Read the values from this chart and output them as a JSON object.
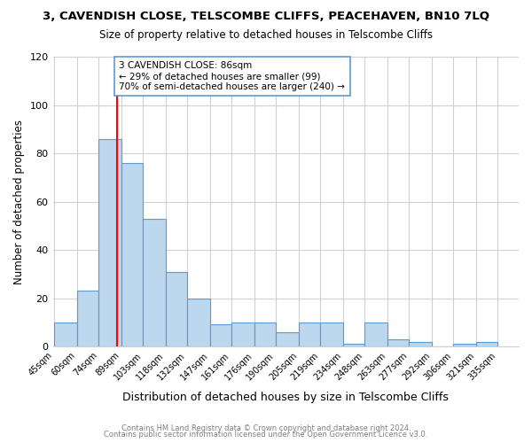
{
  "title": "3, CAVENDISH CLOSE, TELSCOMBE CLIFFS, PEACEHAVEN, BN10 7LQ",
  "subtitle": "Size of property relative to detached houses in Telscombe Cliffs",
  "xlabel": "Distribution of detached houses by size in Telscombe Cliffs",
  "ylabel": "Number of detached properties",
  "bin_labels": [
    "45sqm",
    "60sqm",
    "74sqm",
    "89sqm",
    "103sqm",
    "118sqm",
    "132sqm",
    "147sqm",
    "161sqm",
    "176sqm",
    "190sqm",
    "205sqm",
    "219sqm",
    "234sqm",
    "248sqm",
    "263sqm",
    "277sqm",
    "292sqm",
    "306sqm",
    "321sqm",
    "335sqm"
  ],
  "bin_edges": [
    45,
    60,
    74,
    89,
    103,
    118,
    132,
    147,
    161,
    176,
    190,
    205,
    219,
    234,
    248,
    263,
    277,
    292,
    306,
    321,
    335
  ],
  "bar_heights": [
    10,
    23,
    86,
    76,
    53,
    31,
    20,
    9,
    10,
    10,
    6,
    10,
    10,
    1,
    10,
    3,
    2,
    0,
    1,
    2
  ],
  "bar_color": "#bdd7ee",
  "bar_edge_color": "#5b9bd5",
  "ref_line_x": 86,
  "ref_line_color": "red",
  "annotation_title": "3 CAVENDISH CLOSE: 86sqm",
  "annotation_line1": "← 29% of detached houses are smaller (99)",
  "annotation_line2": "70% of semi-detached houses are larger (240) →",
  "annotation_box_color": "white",
  "annotation_box_edge": "#5b9bd5",
  "ylim": [
    0,
    120
  ],
  "yticks": [
    0,
    20,
    40,
    60,
    80,
    100,
    120
  ],
  "grid_color": "#d0d0d0",
  "background_color": "white",
  "footer1": "Contains HM Land Registry data © Crown copyright and database right 2024.",
  "footer2": "Contains public sector information licensed under the Open Government Licence v3.0."
}
